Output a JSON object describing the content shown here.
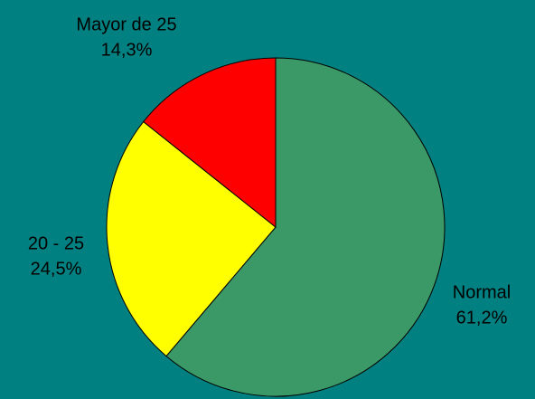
{
  "chart_data": {
    "type": "pie",
    "categories": [
      "Normal",
      "20 - 25",
      "Mayor de 25"
    ],
    "values": [
      61.2,
      24.5,
      14.3
    ],
    "value_labels": [
      "61,2%",
      "24,5%",
      "14,3%"
    ],
    "colors": [
      "#3a9966",
      "#ffff00",
      "#ff0000"
    ]
  }
}
